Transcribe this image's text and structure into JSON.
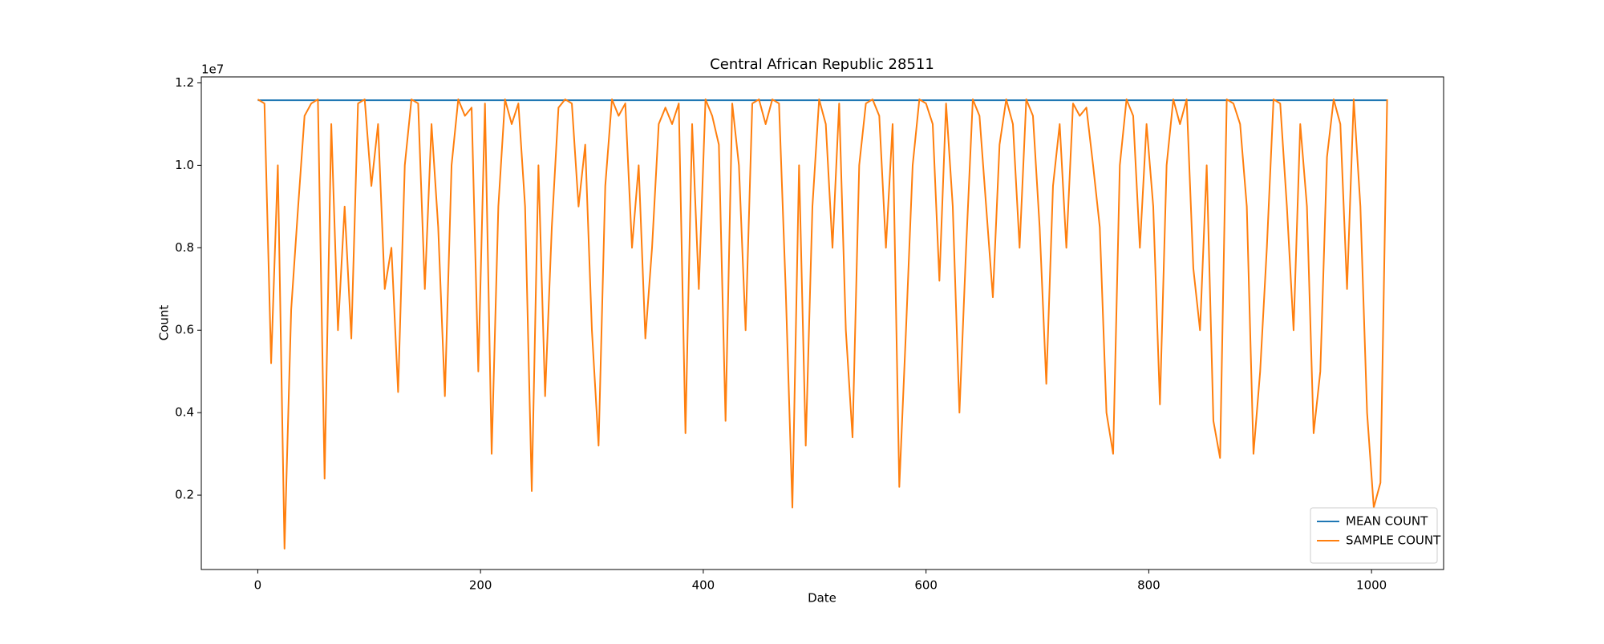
{
  "chart_data": {
    "type": "line",
    "title": "Central African Republic 28511",
    "x_label": "Date",
    "y_label": "Count",
    "y_offset_label": "1e7",
    "xlim": [
      -50.7,
      1064.7
    ],
    "xticks": [
      0,
      200,
      400,
      600,
      800,
      1000
    ],
    "ylim": [
      195000,
      12145000
    ],
    "yticks": [
      {
        "value": 2000000,
        "label": "0.2"
      },
      {
        "value": 4000000,
        "label": "0.4"
      },
      {
        "value": 6000000,
        "label": "0.6"
      },
      {
        "value": 8000000,
        "label": "0.8"
      },
      {
        "value": 10000000,
        "label": "1.0"
      },
      {
        "value": 12000000,
        "label": "1.2"
      }
    ],
    "grid": false,
    "legend": "lower right",
    "series": [
      {
        "name": "MEAN COUNT",
        "color": "#1f77b4",
        "x": [
          0,
          1014
        ],
        "values": [
          11580000,
          11580000
        ]
      },
      {
        "name": "SAMPLE COUNT",
        "color": "#ff7f0e",
        "x": [
          0,
          6,
          12,
          18,
          24,
          30,
          36,
          42,
          48,
          54,
          60,
          66,
          72,
          78,
          84,
          90,
          96,
          102,
          108,
          114,
          120,
          126,
          132,
          138,
          144,
          150,
          156,
          162,
          168,
          174,
          180,
          186,
          192,
          198,
          204,
          210,
          216,
          222,
          228,
          234,
          240,
          246,
          252,
          258,
          264,
          270,
          276,
          282,
          288,
          294,
          300,
          306,
          312,
          318,
          324,
          330,
          336,
          342,
          348,
          354,
          360,
          366,
          372,
          378,
          384,
          390,
          396,
          402,
          408,
          414,
          420,
          426,
          432,
          438,
          444,
          450,
          456,
          462,
          468,
          474,
          480,
          486,
          492,
          498,
          504,
          510,
          516,
          522,
          528,
          534,
          540,
          546,
          552,
          558,
          564,
          570,
          576,
          582,
          588,
          594,
          600,
          606,
          612,
          618,
          624,
          630,
          636,
          642,
          648,
          654,
          660,
          666,
          672,
          678,
          684,
          690,
          696,
          702,
          708,
          714,
          720,
          726,
          732,
          738,
          744,
          750,
          756,
          762,
          768,
          774,
          780,
          786,
          792,
          798,
          804,
          810,
          816,
          822,
          828,
          834,
          840,
          846,
          852,
          858,
          864,
          870,
          876,
          882,
          888,
          894,
          900,
          906,
          912,
          918,
          924,
          930,
          936,
          942,
          948,
          954,
          960,
          966,
          972,
          978,
          984,
          990,
          996,
          1002,
          1008,
          1014
        ],
        "values": [
          11600000.0,
          11500000.0,
          5200000.0,
          10000000.0,
          700000.0,
          6500000.0,
          8900000.0,
          11200000.0,
          11500000.0,
          11600000.0,
          2400000.0,
          11000000.0,
          6000000.0,
          9000000.0,
          5800000.0,
          11500000.0,
          11600000.0,
          9500000.0,
          11000000.0,
          7000000.0,
          8000000.0,
          4500000.0,
          10000000.0,
          11600000.0,
          11500000.0,
          7000000.0,
          11000000.0,
          8500000.0,
          4400000.0,
          10000000.0,
          11600000.0,
          11200000.0,
          11400000.0,
          5000000.0,
          11500000.0,
          3000000.0,
          9000000.0,
          11600000.0,
          11000000.0,
          11500000.0,
          9000000.0,
          2100000.0,
          10000000.0,
          4400000.0,
          8500000.0,
          11400000.0,
          11600000.0,
          11500000.0,
          9000000.0,
          10500000.0,
          6000000.0,
          3200000.0,
          9500000.0,
          11600000.0,
          11200000.0,
          11500000.0,
          8000000.0,
          10000000.0,
          5800000.0,
          8000000.0,
          11000000.0,
          11400000.0,
          11000000.0,
          11500000.0,
          3500000.0,
          11000000.0,
          7000000.0,
          11600000.0,
          11200000.0,
          10500000.0,
          3800000.0,
          11500000.0,
          10000000.0,
          6000000.0,
          11500000.0,
          11600000.0,
          11000000.0,
          11600000.0,
          11500000.0,
          7000000.0,
          1700000.0,
          10000000.0,
          3200000.0,
          9000000.0,
          11600000.0,
          11000000.0,
          8000000.0,
          11500000.0,
          6000000.0,
          3400000.0,
          10000000.0,
          11500000.0,
          11600000.0,
          11200000.0,
          8000000.0,
          11000000.0,
          2200000.0,
          6000000.0,
          10000000.0,
          11600000.0,
          11500000.0,
          11000000.0,
          7200000.0,
          11500000.0,
          9000000.0,
          4000000.0,
          8000000.0,
          11600000.0,
          11200000.0,
          9000000.0,
          6800000.0,
          10500000.0,
          11600000.0,
          11000000.0,
          8000000.0,
          11600000.0,
          11200000.0,
          8500000.0,
          4700000.0,
          9500000.0,
          11000000.0,
          8000000.0,
          11500000.0,
          11200000.0,
          11400000.0,
          10000000.0,
          8500000.0,
          4000000.0,
          3000000.0,
          10000000.0,
          11600000.0,
          11200000.0,
          8000000.0,
          11000000.0,
          9000000.0,
          4200000.0,
          10000000.0,
          11600000.0,
          11000000.0,
          11600000.0,
          7500000.0,
          6000000.0,
          10000000.0,
          3800000.0,
          2900000.0,
          11600000.0,
          11500000.0,
          11000000.0,
          9000000.0,
          3000000.0,
          5000000.0,
          8000000.0,
          11600000.0,
          11500000.0,
          9000000.0,
          6000000.0,
          11000000.0,
          9000000.0,
          3500000.0,
          5000000.0,
          10200000.0,
          11600000.0,
          11000000.0,
          7000000.0,
          11600000.0,
          9000000.0,
          4000000.0,
          1700000.0,
          2300000.0,
          11600000.0
        ]
      }
    ]
  }
}
